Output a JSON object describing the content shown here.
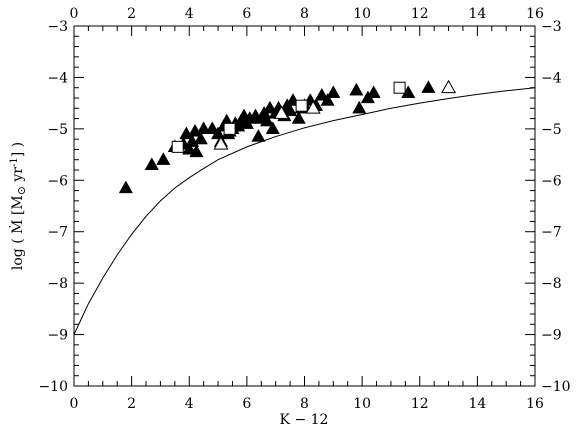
{
  "chart_data": {
    "type": "scatter",
    "xlabel": "K − 12",
    "ylabel_prefix": "log ( Ṁ  [M",
    "ylabel_sun": "⊙",
    "ylabel_mid": " yr",
    "ylabel_exp": "-1",
    "ylabel_suffix": "] )",
    "xlim": [
      0,
      16
    ],
    "ylim": [
      -10,
      -3
    ],
    "x_ticks": [
      0,
      2,
      4,
      6,
      8,
      10,
      12,
      14,
      16
    ],
    "y_ticks": [
      -10,
      -9,
      -8,
      -7,
      -6,
      -5,
      -4,
      -3
    ],
    "x_tick_labels": [
      "0",
      "2",
      "4",
      "6",
      "8",
      "10",
      "12",
      "14",
      "16"
    ],
    "y_tick_labels": [
      "−10",
      "−9",
      "−8",
      "−7",
      "−6",
      "−5",
      "−4",
      "−3"
    ],
    "grid": false,
    "series": [
      {
        "marker": "filled-triangle",
        "points": [
          [
            1.8,
            -6.15
          ],
          [
            2.7,
            -5.7
          ],
          [
            3.1,
            -5.6
          ],
          [
            3.5,
            -5.35
          ],
          [
            3.8,
            -5.3
          ],
          [
            3.9,
            -5.1
          ],
          [
            4.0,
            -5.4
          ],
          [
            4.1,
            -5.25
          ],
          [
            4.2,
            -5.05
          ],
          [
            4.25,
            -5.45
          ],
          [
            4.4,
            -5.2
          ],
          [
            4.5,
            -5.0
          ],
          [
            4.8,
            -5.0
          ],
          [
            5.0,
            -5.1
          ],
          [
            5.1,
            -5.25
          ],
          [
            5.2,
            -4.95
          ],
          [
            5.3,
            -4.85
          ],
          [
            5.35,
            -5.1
          ],
          [
            5.4,
            -5.05
          ],
          [
            5.5,
            -5.0
          ],
          [
            5.6,
            -4.9
          ],
          [
            5.7,
            -4.95
          ],
          [
            5.8,
            -4.85
          ],
          [
            5.9,
            -4.75
          ],
          [
            6.0,
            -4.9
          ],
          [
            6.1,
            -4.8
          ],
          [
            6.3,
            -4.75
          ],
          [
            6.4,
            -5.15
          ],
          [
            6.5,
            -4.8
          ],
          [
            6.6,
            -4.7
          ],
          [
            6.7,
            -4.85
          ],
          [
            6.8,
            -4.6
          ],
          [
            6.9,
            -5.0
          ],
          [
            7.0,
            -4.7
          ],
          [
            7.1,
            -4.6
          ],
          [
            7.3,
            -4.75
          ],
          [
            7.4,
            -4.55
          ],
          [
            7.5,
            -4.65
          ],
          [
            7.6,
            -4.45
          ],
          [
            7.8,
            -4.8
          ],
          [
            7.9,
            -4.6
          ],
          [
            8.0,
            -4.55
          ],
          [
            8.2,
            -4.45
          ],
          [
            8.4,
            -4.55
          ],
          [
            8.6,
            -4.35
          ],
          [
            8.8,
            -4.45
          ],
          [
            9.0,
            -4.3
          ],
          [
            9.8,
            -4.25
          ],
          [
            9.9,
            -4.6
          ],
          [
            10.2,
            -4.4
          ],
          [
            10.4,
            -4.3
          ],
          [
            11.6,
            -4.3
          ],
          [
            12.3,
            -4.2
          ]
        ]
      },
      {
        "marker": "open-square",
        "points": [
          [
            3.6,
            -5.35
          ],
          [
            5.4,
            -5.0
          ],
          [
            7.9,
            -4.55
          ],
          [
            11.3,
            -4.2
          ]
        ]
      },
      {
        "marker": "open-triangle",
        "points": [
          [
            5.1,
            -5.3
          ],
          [
            7.2,
            -4.7
          ],
          [
            8.3,
            -4.6
          ],
          [
            13.0,
            -4.2
          ]
        ]
      }
    ],
    "curve": {
      "style": "solid-line",
      "points": [
        [
          0.0,
          -9.0
        ],
        [
          0.25,
          -8.7
        ],
        [
          0.5,
          -8.4
        ],
        [
          0.75,
          -8.15
        ],
        [
          1.0,
          -7.9
        ],
        [
          1.5,
          -7.45
        ],
        [
          2.0,
          -7.05
        ],
        [
          2.5,
          -6.7
        ],
        [
          3.0,
          -6.4
        ],
        [
          3.5,
          -6.15
        ],
        [
          4.0,
          -5.95
        ],
        [
          4.5,
          -5.77
        ],
        [
          5.0,
          -5.6
        ],
        [
          6.0,
          -5.35
        ],
        [
          7.0,
          -5.15
        ],
        [
          8.0,
          -4.98
        ],
        [
          9.0,
          -4.84
        ],
        [
          10.0,
          -4.72
        ],
        [
          11.0,
          -4.6
        ],
        [
          12.0,
          -4.5
        ],
        [
          13.0,
          -4.41
        ],
        [
          14.0,
          -4.33
        ],
        [
          15.0,
          -4.26
        ],
        [
          16.0,
          -4.2
        ]
      ]
    }
  }
}
